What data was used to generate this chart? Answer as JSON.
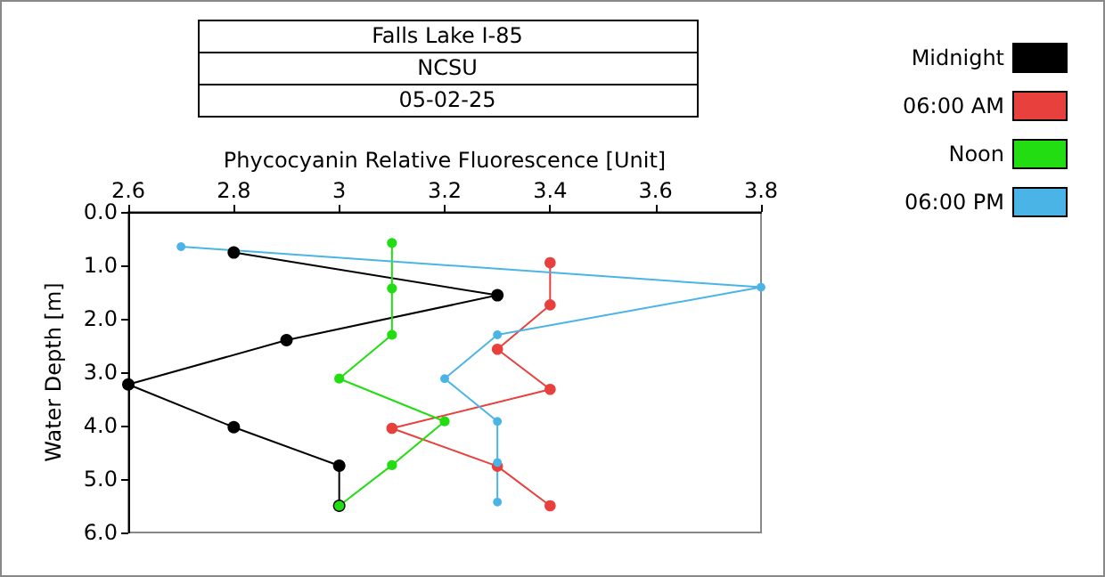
{
  "chart_data": {
    "type": "line",
    "title": "Falls Lake I-85",
    "subtitle": "NCSU",
    "annotations": [
      "05-02-25"
    ],
    "xlabel": "Phycocyanin Relative Fluorescence [Unit]",
    "ylabel": "Water Depth [m]",
    "xlim": [
      2.6,
      3.8
    ],
    "xticks": [
      2.6,
      2.8,
      3,
      3.2,
      3.4,
      3.6,
      3.8
    ],
    "ylim": [
      6,
      0
    ],
    "yticks": [
      {
        "value": 0,
        "label": "0.0"
      },
      {
        "value": 1,
        "label": "1.0"
      },
      {
        "value": 2,
        "label": "2.0"
      },
      {
        "value": 3,
        "label": "3.0"
      },
      {
        "value": 4,
        "label": "4.0"
      },
      {
        "value": 5,
        "label": "5.0"
      },
      {
        "value": 6,
        "label": "6.0"
      }
    ],
    "grid": false,
    "legend": "top right",
    "marker": "circle",
    "line_style": "solid",
    "series": [
      {
        "name": "Midnight",
        "color": "#000000",
        "x": [
          2.8,
          3.3,
          2.9,
          2.6,
          2.8,
          3.0,
          3.0
        ],
        "values": [
          0.76,
          1.56,
          2.4,
          3.23,
          4.03,
          4.75,
          5.5
        ]
      },
      {
        "name": "06:00 AM",
        "color": "#e8403c",
        "x": [
          3.4,
          3.4,
          3.3,
          3.4,
          3.1,
          3.3,
          3.4
        ],
        "values": [
          0.95,
          1.74,
          2.57,
          3.32,
          4.05,
          4.76,
          5.5
        ]
      },
      {
        "name": "Noon",
        "color": "#22dd11",
        "x": [
          3.1,
          3.1,
          3.1,
          3.0,
          3.2,
          3.1,
          3.0
        ],
        "values": [
          0.58,
          1.43,
          2.3,
          3.12,
          3.92,
          4.74,
          5.5
        ]
      },
      {
        "name": "06:00 PM",
        "color": "#4ab4e6",
        "x": [
          2.7,
          3.8,
          3.3,
          3.2,
          3.3,
          3.3,
          3.3
        ],
        "values": [
          0.65,
          1.41,
          2.3,
          3.12,
          3.92,
          4.69,
          5.43
        ]
      }
    ]
  }
}
